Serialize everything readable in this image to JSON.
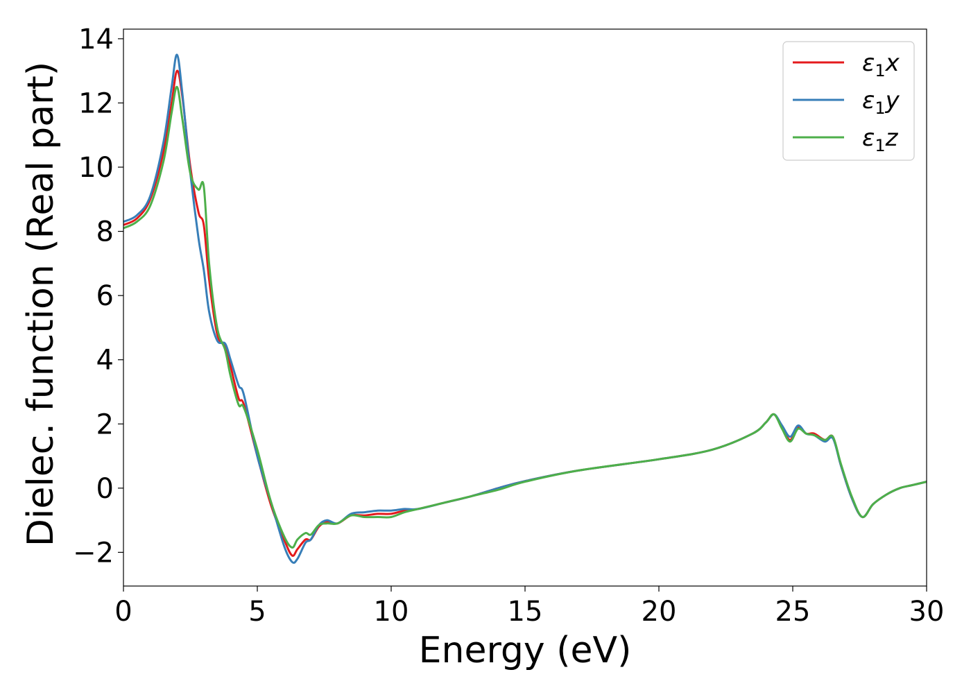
{
  "chart_data": {
    "type": "line",
    "title": "",
    "xlabel": "Energy (eV)",
    "ylabel": "Dielec. function (Real part)",
    "xlim": [
      0,
      30
    ],
    "ylim": [
      -3.05,
      14.3
    ],
    "xticks": [
      0,
      5,
      10,
      15,
      20,
      25,
      30
    ],
    "xtick_labels": [
      "0",
      "5",
      "10",
      "15",
      "20",
      "25",
      "30"
    ],
    "yticks": [
      -2,
      0,
      2,
      4,
      6,
      8,
      10,
      12,
      14
    ],
    "ytick_labels": [
      "−2",
      "0",
      "2",
      "4",
      "6",
      "8",
      "10",
      "12",
      "14"
    ],
    "grid": false,
    "legend_position": "top-right",
    "series": [
      {
        "name": "ε1x",
        "legend": {
          "base": "ε",
          "sub": "1",
          "tail": "x"
        },
        "color": "#e41a1c",
        "x": [
          0,
          0.5,
          1.0,
          1.5,
          1.8,
          2.0,
          2.2,
          2.5,
          2.8,
          3.0,
          3.2,
          3.5,
          3.8,
          4.0,
          4.3,
          4.5,
          5.0,
          5.5,
          6.0,
          6.3,
          6.5,
          6.8,
          7.0,
          7.3,
          7.6,
          8.0,
          8.5,
          9.0,
          9.5,
          10.0,
          10.5,
          11.0,
          12.0,
          13.0,
          14.0,
          15.0,
          17.0,
          20.0,
          22.0,
          23.5,
          24.0,
          24.3,
          24.6,
          24.9,
          25.2,
          25.5,
          25.8,
          26.2,
          26.5,
          26.8,
          27.2,
          27.6,
          28.0,
          28.5,
          29.0,
          29.5,
          30.0
        ],
        "y": [
          8.2,
          8.4,
          9.0,
          10.5,
          12.0,
          13.0,
          12.2,
          10.0,
          8.6,
          8.2,
          6.5,
          4.8,
          4.4,
          3.8,
          2.8,
          2.6,
          1.0,
          -0.5,
          -1.6,
          -2.1,
          -1.9,
          -1.6,
          -1.6,
          -1.2,
          -1.05,
          -1.1,
          -0.85,
          -0.85,
          -0.8,
          -0.8,
          -0.7,
          -0.65,
          -0.45,
          -0.25,
          0.0,
          0.22,
          0.55,
          0.9,
          1.2,
          1.7,
          2.05,
          2.3,
          1.9,
          1.5,
          1.9,
          1.7,
          1.7,
          1.5,
          1.6,
          0.7,
          -0.3,
          -0.9,
          -0.5,
          -0.2,
          0.0,
          0.1,
          0.2
        ]
      },
      {
        "name": "ε1y",
        "legend": {
          "base": "ε",
          "sub": "1",
          "tail": "y"
        },
        "color": "#377eb8",
        "x": [
          0,
          0.5,
          1.0,
          1.5,
          1.8,
          2.0,
          2.2,
          2.5,
          2.8,
          3.0,
          3.2,
          3.5,
          3.8,
          4.0,
          4.3,
          4.5,
          5.0,
          5.5,
          6.0,
          6.3,
          6.5,
          6.8,
          7.0,
          7.3,
          7.6,
          8.0,
          8.5,
          9.0,
          9.5,
          10.0,
          10.5,
          11.0,
          12.0,
          13.0,
          14.0,
          15.0,
          17.0,
          20.0,
          22.0,
          23.5,
          24.0,
          24.3,
          24.6,
          24.9,
          25.2,
          25.5,
          25.8,
          26.2,
          26.5,
          26.8,
          27.2,
          27.6,
          28.0,
          28.5,
          29.0,
          29.5,
          30.0
        ],
        "y": [
          8.3,
          8.5,
          9.1,
          10.8,
          12.5,
          13.5,
          12.3,
          9.8,
          7.8,
          6.8,
          5.5,
          4.6,
          4.5,
          4.0,
          3.2,
          2.9,
          1.0,
          -0.4,
          -1.8,
          -2.3,
          -2.2,
          -1.7,
          -1.6,
          -1.15,
          -1.0,
          -1.1,
          -0.8,
          -0.75,
          -0.7,
          -0.7,
          -0.65,
          -0.65,
          -0.45,
          -0.25,
          0.0,
          0.22,
          0.55,
          0.9,
          1.2,
          1.7,
          2.05,
          2.3,
          1.95,
          1.6,
          1.95,
          1.7,
          1.65,
          1.45,
          1.55,
          0.7,
          -0.3,
          -0.9,
          -0.5,
          -0.2,
          0.0,
          0.1,
          0.2
        ]
      },
      {
        "name": "ε1z",
        "legend": {
          "base": "ε",
          "sub": "1",
          "tail": "z"
        },
        "color": "#4daf4a",
        "x": [
          0,
          0.5,
          1.0,
          1.5,
          1.8,
          2.0,
          2.2,
          2.5,
          2.8,
          3.0,
          3.2,
          3.5,
          3.8,
          4.0,
          4.3,
          4.5,
          5.0,
          5.5,
          6.0,
          6.3,
          6.5,
          6.8,
          7.0,
          7.3,
          7.6,
          8.0,
          8.5,
          9.0,
          9.5,
          10.0,
          10.5,
          11.0,
          12.0,
          13.0,
          14.0,
          15.0,
          17.0,
          20.0,
          22.0,
          23.5,
          24.0,
          24.3,
          24.6,
          24.9,
          25.2,
          25.5,
          25.8,
          26.2,
          26.5,
          26.8,
          27.2,
          27.6,
          28.0,
          28.5,
          29.0,
          29.5,
          30.0
        ],
        "y": [
          8.1,
          8.3,
          8.8,
          10.2,
          11.7,
          12.5,
          11.5,
          9.8,
          9.3,
          9.4,
          7.0,
          5.0,
          4.3,
          3.5,
          2.6,
          2.5,
          1.2,
          -0.4,
          -1.5,
          -1.85,
          -1.6,
          -1.4,
          -1.45,
          -1.15,
          -1.1,
          -1.1,
          -0.85,
          -0.9,
          -0.9,
          -0.9,
          -0.75,
          -0.65,
          -0.45,
          -0.25,
          -0.05,
          0.2,
          0.55,
          0.9,
          1.2,
          1.7,
          2.05,
          2.3,
          1.85,
          1.45,
          1.85,
          1.7,
          1.65,
          1.5,
          1.6,
          0.75,
          -0.25,
          -0.9,
          -0.5,
          -0.2,
          0.0,
          0.1,
          0.2
        ]
      }
    ]
  }
}
